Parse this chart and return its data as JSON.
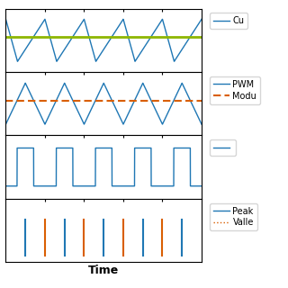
{
  "title": "",
  "xlabel": "Time",
  "background": "#ffffff",
  "panel1": {
    "label_current": "Cu",
    "current_color": "#1f77b4",
    "ref_color": "#8db600",
    "ref_value": 0.15
  },
  "panel2": {
    "label_pwm": "PWM",
    "label_mod": "Modu",
    "pwm_color": "#1f77b4",
    "mod_color": "#d95f02",
    "mod_value": 0.1
  },
  "panel3": {
    "color": "#1f77b4",
    "high": 0.6,
    "low": -0.6
  },
  "panel4": {
    "label_peak": "Peak",
    "label_valley": "Valle",
    "peak_color": "#1f77b4",
    "valley_color": "#d95f02"
  },
  "T": 1.0,
  "num_periods": 5,
  "duty": 0.7
}
